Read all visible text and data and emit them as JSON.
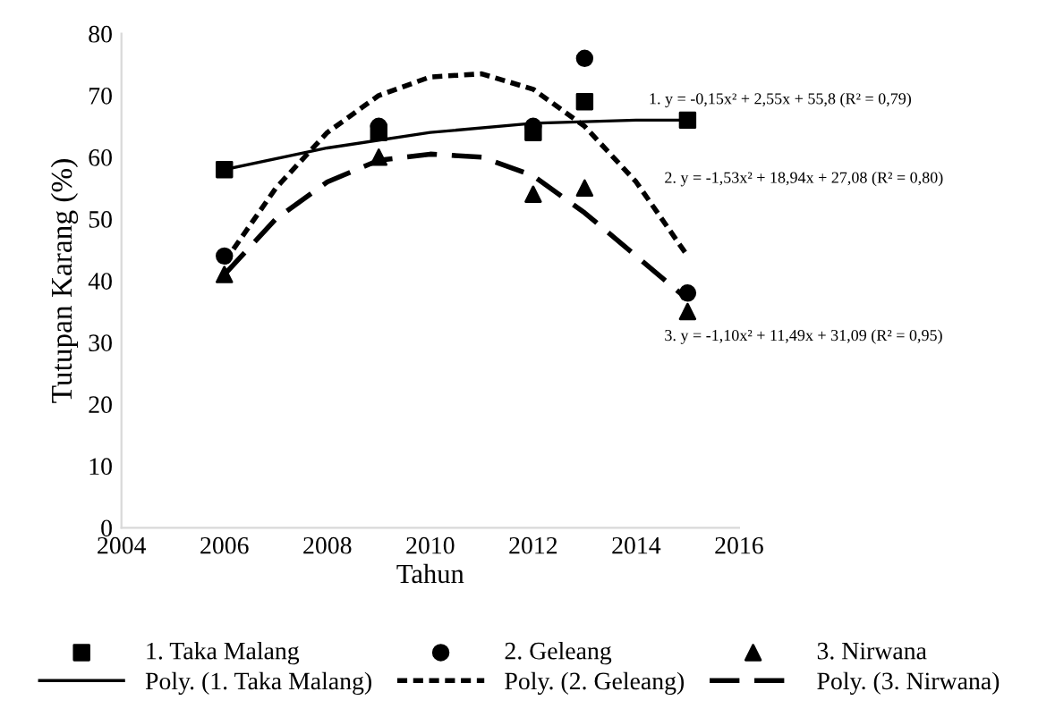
{
  "chart_data": {
    "type": "scatter",
    "xlabel": "Tahun",
    "ylabel": "Tutupan Karang (%)",
    "xlim": [
      2004,
      2016
    ],
    "xticks": [
      2004,
      2006,
      2008,
      2010,
      2012,
      2014,
      2016
    ],
    "ylim": [
      0,
      80
    ],
    "yticks": [
      0,
      10,
      20,
      30,
      40,
      50,
      60,
      70,
      80
    ],
    "grid": false,
    "legend": "bottom",
    "series": [
      {
        "name": "1. Taka Malang",
        "marker": "square",
        "color": "#000000",
        "x": [
          2006,
          2009,
          2012,
          2013,
          2015
        ],
        "values": [
          58,
          64,
          64,
          69,
          66
        ]
      },
      {
        "name": "2. Geleang",
        "marker": "circle",
        "color": "#000000",
        "x": [
          2006,
          2009,
          2012,
          2013,
          2015
        ],
        "values": [
          44,
          65,
          65,
          76,
          38
        ]
      },
      {
        "name": "3. Nirwana",
        "marker": "triangle",
        "color": "#000000",
        "x": [
          2006,
          2009,
          2012,
          2013,
          2015
        ],
        "values": [
          41,
          60,
          54,
          55,
          35
        ]
      },
      {
        "name": "Poly. (1. Taka Malang)",
        "type": "line",
        "line_style": "solid",
        "color": "#000000",
        "x": [
          2006,
          2008,
          2010,
          2012,
          2014,
          2015
        ],
        "values": [
          58,
          61.5,
          64,
          65.5,
          66,
          66
        ]
      },
      {
        "name": "Poly. (2. Geleang)",
        "type": "line",
        "line_style": "dotted",
        "color": "#000000",
        "x": [
          2006,
          2007,
          2008,
          2009,
          2010,
          2011,
          2012,
          2013,
          2014,
          2015
        ],
        "values": [
          43,
          55,
          64,
          70,
          73,
          73.5,
          71,
          65,
          56,
          44
        ]
      },
      {
        "name": "Poly. (3. Nirwana)",
        "type": "line",
        "line_style": "dashed",
        "color": "#000000",
        "x": [
          2006,
          2007,
          2008,
          2009,
          2010,
          2011,
          2012,
          2013,
          2014,
          2015
        ],
        "values": [
          41,
          50,
          56,
          59.5,
          60.5,
          60,
          57,
          51,
          44,
          37
        ]
      }
    ],
    "annotations": [
      "1. y = -0,15x² + 2,55x + 55,8 (R² = 0,79)",
      "2. y = -1,53x² + 18,94x + 27,08 (R² = 0,80)",
      "3. y = -1,10x² + 11,49x + 31,09 (R² = 0,95)"
    ]
  }
}
